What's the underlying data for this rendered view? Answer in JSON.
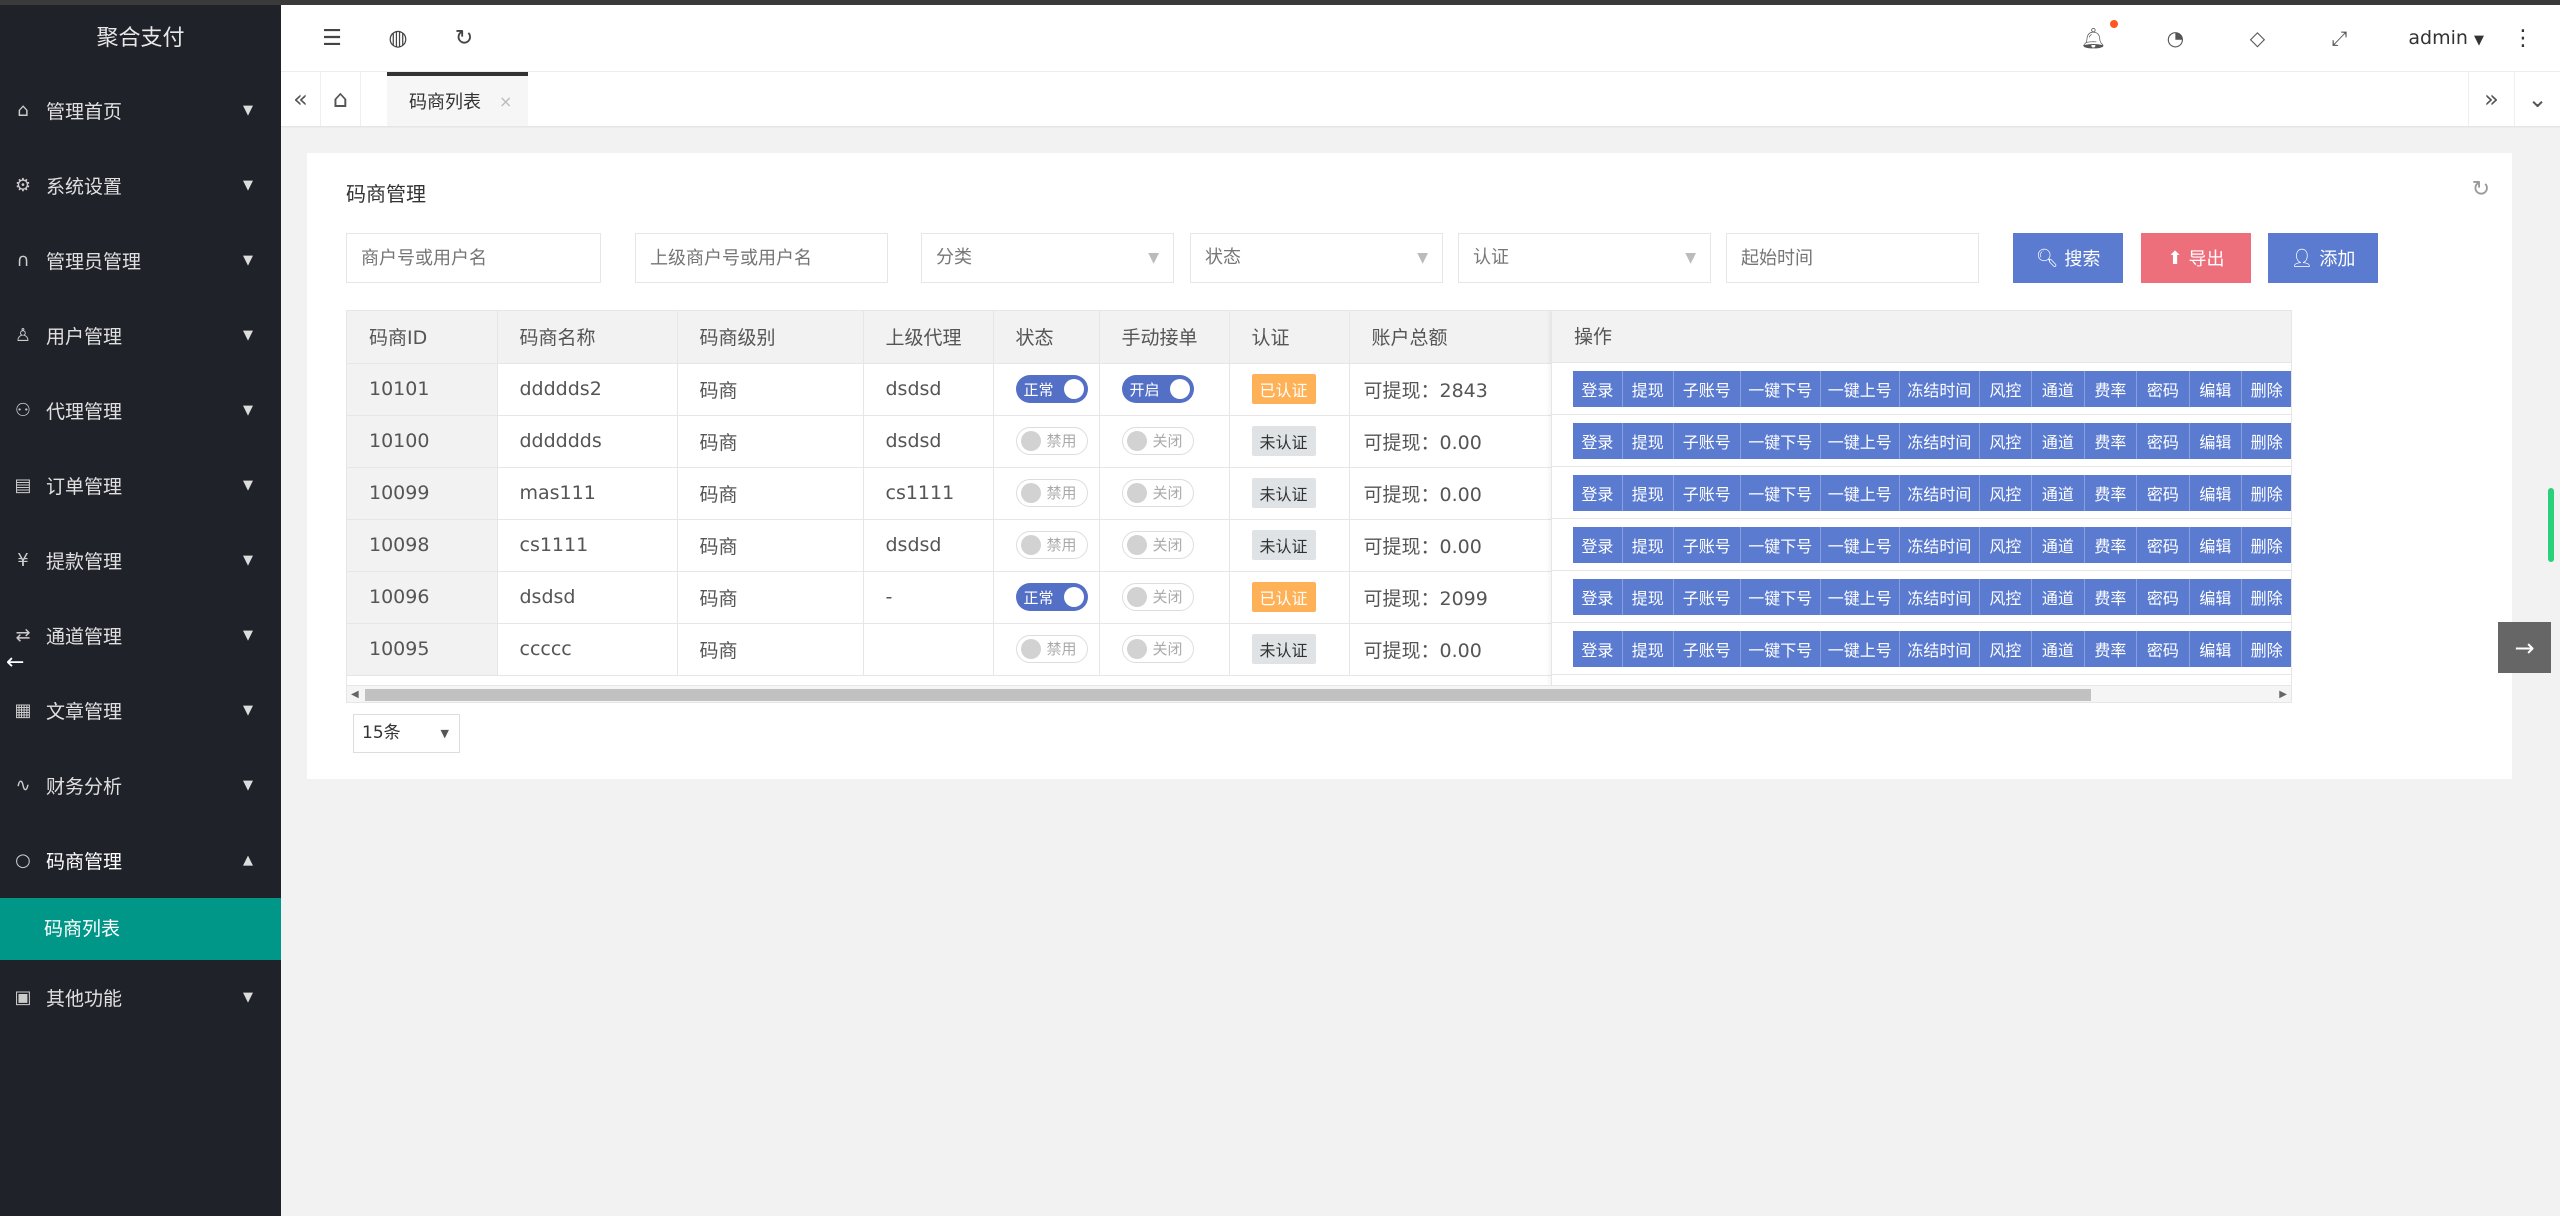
{
  "app_title": "聚合支付",
  "sidebar": {
    "items": [
      {
        "label": "管理首页",
        "icon": "home-icon"
      },
      {
        "label": "系统设置",
        "icon": "gear-icon"
      },
      {
        "label": "管理员管理",
        "icon": "headset-icon"
      },
      {
        "label": "用户管理",
        "icon": "user-icon"
      },
      {
        "label": "代理管理",
        "icon": "users-icon"
      },
      {
        "label": "订单管理",
        "icon": "list-icon"
      },
      {
        "label": "提款管理",
        "icon": "yen-icon"
      },
      {
        "label": "通道管理",
        "icon": "channel-icon"
      },
      {
        "label": "文章管理",
        "icon": "doc-icon"
      },
      {
        "label": "财务分析",
        "icon": "pulse-icon"
      },
      {
        "label": "码商管理",
        "icon": "circle-icon",
        "expanded": true
      },
      {
        "label": "其他功能",
        "icon": "apps-icon"
      }
    ],
    "active_sub": "码商列表"
  },
  "header": {
    "user": "admin",
    "notification_dot_color": "#ff5722"
  },
  "tabs": {
    "active": "码商列表",
    "close": "×"
  },
  "card": {
    "title": "码商管理",
    "filters": {
      "merchant_placeholder": "商户号或用户名",
      "parent_placeholder": "上级商户号或用户名",
      "category": "分类",
      "status": "状态",
      "auth": "认证",
      "start_time_placeholder": "起始时间"
    },
    "buttons": {
      "search": "搜索",
      "export": "导出",
      "add": "添加"
    },
    "colors": {
      "primary": "#5a7bd0",
      "danger": "#ee6f7c",
      "verified": "#ffb158",
      "active_menu": "#009688"
    }
  },
  "table": {
    "columns": [
      "码商ID",
      "码商名称",
      "码商级别",
      "上级代理",
      "状态",
      "手动接单",
      "认证",
      "账户总额",
      "操作"
    ],
    "rows": [
      {
        "id": "10101",
        "name": "ddddds2",
        "level": "码商",
        "parent": "dsdsd",
        "status_on": true,
        "status": "正常",
        "manual_on": true,
        "manual": "开启",
        "auth": "已认证",
        "auth_ok": true,
        "balance": "可提现：2843"
      },
      {
        "id": "10100",
        "name": "dddddds",
        "level": "码商",
        "parent": "dsdsd",
        "status_on": false,
        "status": "禁用",
        "manual_on": false,
        "manual": "关闭",
        "auth": "未认证",
        "auth_ok": false,
        "balance": "可提现：0.00"
      },
      {
        "id": "10099",
        "name": "mas111",
        "level": "码商",
        "parent": "cs1111",
        "status_on": false,
        "status": "禁用",
        "manual_on": false,
        "manual": "关闭",
        "auth": "未认证",
        "auth_ok": false,
        "balance": "可提现：0.00"
      },
      {
        "id": "10098",
        "name": "cs1111",
        "level": "码商",
        "parent": "dsdsd",
        "status_on": false,
        "status": "禁用",
        "manual_on": false,
        "manual": "关闭",
        "auth": "未认证",
        "auth_ok": false,
        "balance": "可提现：0.00"
      },
      {
        "id": "10096",
        "name": "dsdsd",
        "level": "码商",
        "parent": "-",
        "status_on": true,
        "status": "正常",
        "manual_on": false,
        "manual": "关闭",
        "auth": "已认证",
        "auth_ok": true,
        "balance": "可提现：2099"
      },
      {
        "id": "10095",
        "name": "ccccc",
        "level": "码商",
        "parent": "",
        "status_on": false,
        "status": "禁用",
        "manual_on": false,
        "manual": "关闭",
        "auth": "未认证",
        "auth_ok": false,
        "balance": "可提现：0.00"
      }
    ],
    "actions": [
      "登录",
      "提现",
      "子账号",
      "一键下号",
      "一键上号",
      "冻结时间",
      "风控",
      "通道",
      "费率",
      "密码",
      "编辑",
      "删除"
    ]
  },
  "pagination": {
    "page_size": "15条"
  }
}
